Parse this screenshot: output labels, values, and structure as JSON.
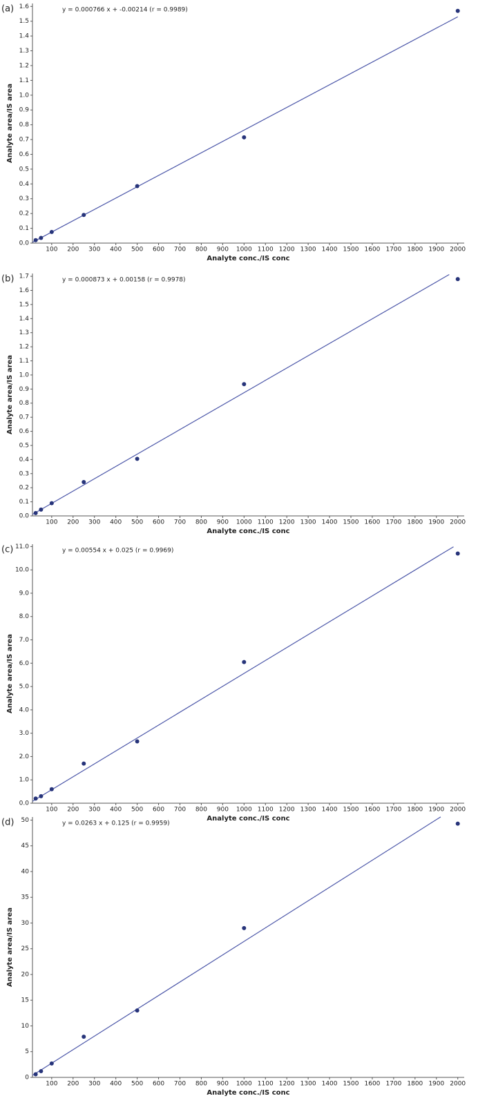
{
  "chart_data": [
    {
      "type": "scatter",
      "panel_label": "(a)",
      "annotation": "y = 0.000766 x + -0.00214 (r = 0.9989)",
      "xlabel": "Analyte conc./IS conc",
      "ylabel": "Analyte area/IS area",
      "xlim": [
        10,
        2030
      ],
      "ylim": [
        0,
        1.62
      ],
      "xticks": [
        100,
        200,
        300,
        400,
        500,
        600,
        700,
        800,
        900,
        1000,
        1100,
        1200,
        1300,
        1400,
        1500,
        1600,
        1700,
        1800,
        1900,
        2000
      ],
      "yticks": [
        {
          "value": 0,
          "label": "0.0"
        },
        0.1,
        0.2,
        0.3,
        0.4,
        0.5,
        0.6,
        0.7,
        0.8,
        0.9,
        {
          "value": 1,
          "label": "1.0"
        },
        1.1,
        1.2,
        1.3,
        1.4,
        1.5,
        1.6
      ],
      "points": {
        "x": [
          25,
          50,
          100,
          250,
          500,
          1000,
          2000
        ],
        "y": [
          0.02,
          0.035,
          0.075,
          0.19,
          0.385,
          0.715,
          1.57
        ]
      },
      "fit_line": {
        "x": [
          10,
          2000
        ],
        "y": [
          0.0055,
          1.5299
        ]
      },
      "color": "#27347a",
      "line_color": "#4b56a8"
    },
    {
      "type": "scatter",
      "panel_label": "(b)",
      "annotation": "y = 0.000873 x + 0.00158 (r = 0.9978)",
      "xlabel": "Analyte conc./IS conc",
      "ylabel": "Analyte area/IS area",
      "xlim": [
        10,
        2030
      ],
      "ylim": [
        0,
        1.72
      ],
      "xticks": [
        100,
        200,
        300,
        400,
        500,
        600,
        700,
        800,
        900,
        1000,
        1100,
        1200,
        1300,
        1400,
        1500,
        1600,
        1700,
        1800,
        1900,
        2000
      ],
      "yticks": [
        {
          "value": 0,
          "label": "0.0"
        },
        0.1,
        0.2,
        0.3,
        0.4,
        0.5,
        0.6,
        0.7,
        0.8,
        0.9,
        {
          "value": 1,
          "label": "1.0"
        },
        1.1,
        1.2,
        1.3,
        1.4,
        1.5,
        1.6,
        1.7
      ],
      "points": {
        "x": [
          25,
          50,
          100,
          250,
          500,
          1000,
          2000
        ],
        "y": [
          0.02,
          0.045,
          0.09,
          0.24,
          0.405,
          0.935,
          1.68
        ]
      },
      "fit_line": {
        "x": [
          10,
          1960
        ],
        "y": [
          0.0103,
          1.7126
        ]
      },
      "color": "#27347a",
      "line_color": "#4b56a8"
    },
    {
      "type": "scatter",
      "panel_label": "(c)",
      "annotation": "y = 0.00554 x + 0.025 (r = 0.9969)",
      "xlabel": "Analyte conc./IS conc",
      "ylabel": "Analyte area/IS area",
      "xlim": [
        10,
        2030
      ],
      "ylim": [
        0,
        11.1
      ],
      "xticks": [
        100,
        200,
        300,
        400,
        500,
        600,
        700,
        800,
        900,
        1000,
        1100,
        1200,
        1300,
        1400,
        1500,
        1600,
        1700,
        1800,
        1900,
        2000
      ],
      "yticks": [
        {
          "value": 0,
          "label": "0.0"
        },
        {
          "value": 1,
          "label": "1.0"
        },
        {
          "value": 2,
          "label": "2.0"
        },
        {
          "value": 3,
          "label": "3.0"
        },
        {
          "value": 4,
          "label": "4.0"
        },
        {
          "value": 5,
          "label": "5.0"
        },
        {
          "value": 6,
          "label": "6.0"
        },
        {
          "value": 7,
          "label": "7.0"
        },
        {
          "value": 8,
          "label": "8.0"
        },
        {
          "value": 9,
          "label": "9.0"
        },
        {
          "value": 10,
          "label": "10.0"
        },
        {
          "value": 11,
          "label": "11.0"
        }
      ],
      "points": {
        "x": [
          25,
          50,
          100,
          250,
          500,
          1000,
          2000
        ],
        "y": [
          0.2,
          0.3,
          0.6,
          1.7,
          2.65,
          6.05,
          10.7
        ]
      },
      "fit_line": {
        "x": [
          10,
          1980
        ],
        "y": [
          0.08,
          10.99
        ]
      },
      "color": "#27347a",
      "line_color": "#4b56a8"
    },
    {
      "type": "scatter",
      "panel_label": "(d)",
      "annotation": "y = 0.0263 x + 0.125 (r = 0.9959)",
      "xlabel": "Analyte conc./IS conc",
      "ylabel": "Analyte area/IS area",
      "xlim": [
        10,
        2030
      ],
      "ylim": [
        0,
        50.6
      ],
      "xticks": [
        100,
        200,
        300,
        400,
        500,
        600,
        700,
        800,
        900,
        1000,
        1100,
        1200,
        1300,
        1400,
        1500,
        1600,
        1700,
        1800,
        1900,
        2000
      ],
      "yticks": [
        0,
        5,
        10,
        15,
        20,
        25,
        30,
        35,
        40,
        45,
        50
      ],
      "points": {
        "x": [
          25,
          50,
          100,
          250,
          500,
          1000,
          2000
        ],
        "y": [
          0.6,
          1.2,
          2.7,
          7.9,
          13.0,
          29.0,
          49.3
        ]
      },
      "fit_line": {
        "x": [
          10,
          1920
        ],
        "y": [
          0.388,
          50.62
        ]
      },
      "color": "#27347a",
      "line_color": "#4b56a8"
    }
  ]
}
